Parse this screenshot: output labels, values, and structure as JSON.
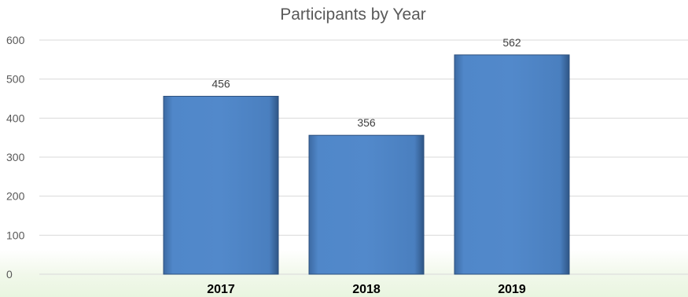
{
  "chart_data": {
    "type": "bar",
    "title": "Participants by Year",
    "categories": [
      "2017",
      "2018",
      "2019"
    ],
    "values": [
      456,
      356,
      562
    ],
    "xlabel": "",
    "ylabel": "",
    "ylim": [
      0,
      600
    ],
    "yticks": [
      0,
      100,
      200,
      300,
      400,
      500,
      600
    ],
    "grid": true,
    "legend": "none",
    "data_labels": true,
    "colors": {
      "bar": "#4f81bd",
      "bar_edge": "#2c4f7c",
      "grid": "#d9d9d9",
      "text": "#595959"
    }
  }
}
